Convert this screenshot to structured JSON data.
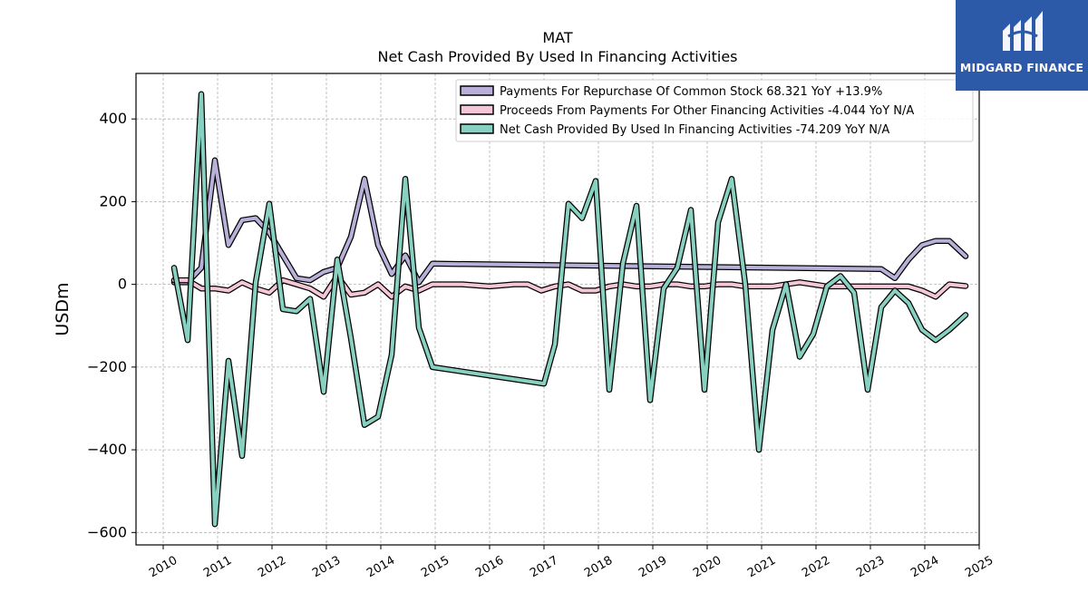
{
  "logo": {
    "text": "MIDGARD FINANCE",
    "bg_color": "#2d5aa8"
  },
  "chart_data": {
    "type": "line",
    "title": "MAT",
    "subtitle": "Net Cash Provided By Used In Financing Activities",
    "ylabel": "USDm",
    "xlabel": "",
    "xlim": [
      2009.5,
      2025.0
    ],
    "ylim": [
      -630,
      510
    ],
    "x_ticks": [
      2010,
      2011,
      2012,
      2013,
      2014,
      2015,
      2016,
      2017,
      2018,
      2019,
      2020,
      2021,
      2022,
      2023,
      2024,
      2025
    ],
    "x_tick_labels": [
      "2010",
      "2011",
      "2012",
      "2013",
      "2014",
      "2015",
      "2016",
      "2017",
      "2018",
      "2019",
      "2020",
      "2021",
      "2022",
      "2023",
      "2024",
      "2025"
    ],
    "y_ticks": [
      400,
      200,
      0,
      -200,
      -400,
      -600
    ],
    "y_tick_labels": [
      "400",
      "200",
      "0",
      "−200",
      "−400",
      "−600"
    ],
    "grid": true,
    "legend_position": "top-right",
    "series": [
      {
        "name": "Payments For Repurchase Of Common Stock",
        "legend_label": "Payments For Repurchase Of Common Stock  68.321 YoY +13.9%",
        "color": "#b8b0d8",
        "points": [
          [
            2010.2,
            5
          ],
          [
            2010.45,
            5
          ],
          [
            2010.7,
            40
          ],
          [
            2010.95,
            300
          ],
          [
            2011.2,
            95
          ],
          [
            2011.45,
            155
          ],
          [
            2011.7,
            160
          ],
          [
            2011.95,
            125
          ],
          [
            2012.2,
            70
          ],
          [
            2012.45,
            15
          ],
          [
            2012.7,
            10
          ],
          [
            2012.95,
            30
          ],
          [
            2013.2,
            40
          ],
          [
            2013.45,
            115
          ],
          [
            2013.7,
            255
          ],
          [
            2013.95,
            95
          ],
          [
            2014.2,
            25
          ],
          [
            2014.45,
            70
          ],
          [
            2014.7,
            5
          ],
          [
            2014.95,
            50
          ],
          [
            2023.2,
            37
          ],
          [
            2023.45,
            15
          ],
          [
            2023.7,
            60
          ],
          [
            2023.95,
            95
          ],
          [
            2024.2,
            105
          ],
          [
            2024.45,
            105
          ],
          [
            2024.75,
            68
          ]
        ]
      },
      {
        "name": "Proceeds From Payments For Other Financing Activities",
        "legend_label": "Proceeds From Payments For Other Financing Activities  -4.044 YoY N/A",
        "color": "#f5c6d8",
        "points": [
          [
            2010.2,
            10
          ],
          [
            2010.45,
            10
          ],
          [
            2010.7,
            -10
          ],
          [
            2010.95,
            -10
          ],
          [
            2011.2,
            -15
          ],
          [
            2011.45,
            5
          ],
          [
            2011.7,
            -10
          ],
          [
            2011.95,
            -20
          ],
          [
            2012.2,
            10
          ],
          [
            2012.45,
            0
          ],
          [
            2012.7,
            -10
          ],
          [
            2012.95,
            -30
          ],
          [
            2013.2,
            20
          ],
          [
            2013.45,
            -25
          ],
          [
            2013.7,
            -20
          ],
          [
            2013.95,
            0
          ],
          [
            2014.2,
            -30
          ],
          [
            2014.45,
            -5
          ],
          [
            2014.7,
            -15
          ],
          [
            2014.95,
            0
          ],
          [
            2015.5,
            0
          ],
          [
            2016.0,
            -5
          ],
          [
            2016.45,
            0
          ],
          [
            2016.7,
            0
          ],
          [
            2016.95,
            -15
          ],
          [
            2017.2,
            -5
          ],
          [
            2017.45,
            0
          ],
          [
            2017.7,
            -15
          ],
          [
            2017.95,
            -15
          ],
          [
            2018.2,
            -5
          ],
          [
            2018.45,
            0
          ],
          [
            2018.7,
            -5
          ],
          [
            2018.95,
            -5
          ],
          [
            2019.2,
            0
          ],
          [
            2019.45,
            0
          ],
          [
            2019.7,
            -5
          ],
          [
            2019.95,
            -5
          ],
          [
            2020.2,
            0
          ],
          [
            2020.45,
            0
          ],
          [
            2020.7,
            -5
          ],
          [
            2020.95,
            -5
          ],
          [
            2021.2,
            -5
          ],
          [
            2021.45,
            0
          ],
          [
            2021.7,
            5
          ],
          [
            2021.95,
            0
          ],
          [
            2022.2,
            -5
          ],
          [
            2022.45,
            -5
          ],
          [
            2022.7,
            -5
          ],
          [
            2022.95,
            -5
          ],
          [
            2023.2,
            -5
          ],
          [
            2023.45,
            -5
          ],
          [
            2023.7,
            -5
          ],
          [
            2023.95,
            -15
          ],
          [
            2024.2,
            -30
          ],
          [
            2024.45,
            0
          ],
          [
            2024.75,
            -4
          ]
        ]
      },
      {
        "name": "Net Cash Provided By Used In Financing Activities",
        "legend_label": "Net Cash Provided By Used In Financing Activities  -74.209 YoY N/A",
        "color": "#88d0c0",
        "points": [
          [
            2010.2,
            40
          ],
          [
            2010.45,
            -135
          ],
          [
            2010.7,
            460
          ],
          [
            2010.95,
            -580
          ],
          [
            2011.2,
            -185
          ],
          [
            2011.45,
            -415
          ],
          [
            2011.7,
            5
          ],
          [
            2011.95,
            195
          ],
          [
            2012.2,
            -60
          ],
          [
            2012.45,
            -65
          ],
          [
            2012.7,
            -35
          ],
          [
            2012.95,
            -260
          ],
          [
            2013.2,
            60
          ],
          [
            2013.45,
            -130
          ],
          [
            2013.7,
            -340
          ],
          [
            2013.95,
            -320
          ],
          [
            2014.2,
            -170
          ],
          [
            2014.45,
            255
          ],
          [
            2014.7,
            -105
          ],
          [
            2014.95,
            -200
          ],
          [
            2017.0,
            -240
          ],
          [
            2017.2,
            -145
          ],
          [
            2017.45,
            195
          ],
          [
            2017.7,
            160
          ],
          [
            2017.95,
            250
          ],
          [
            2018.2,
            -255
          ],
          [
            2018.45,
            50
          ],
          [
            2018.7,
            190
          ],
          [
            2018.95,
            -280
          ],
          [
            2019.2,
            -10
          ],
          [
            2019.45,
            40
          ],
          [
            2019.7,
            180
          ],
          [
            2019.95,
            -255
          ],
          [
            2020.2,
            150
          ],
          [
            2020.45,
            255
          ],
          [
            2020.7,
            0
          ],
          [
            2020.95,
            -400
          ],
          [
            2021.2,
            -110
          ],
          [
            2021.45,
            0
          ],
          [
            2021.7,
            -175
          ],
          [
            2021.95,
            -120
          ],
          [
            2022.2,
            -5
          ],
          [
            2022.45,
            20
          ],
          [
            2022.7,
            -20
          ],
          [
            2022.95,
            -255
          ],
          [
            2023.2,
            -55
          ],
          [
            2023.45,
            -15
          ],
          [
            2023.7,
            -45
          ],
          [
            2023.95,
            -110
          ],
          [
            2024.2,
            -135
          ],
          [
            2024.45,
            -110
          ],
          [
            2024.75,
            -74
          ]
        ]
      }
    ]
  }
}
